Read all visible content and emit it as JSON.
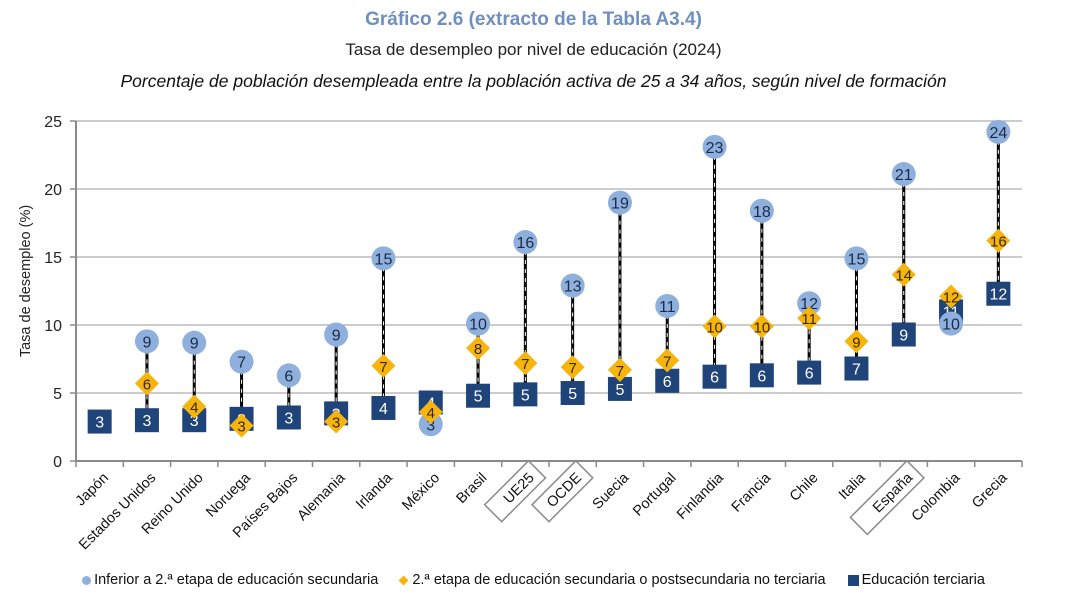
{
  "chart_data": {
    "type": "scatter",
    "title": "Gráfico 2.6 (extracto de la Tabla A3.4)",
    "subtitle": "Tasa de desempleo por nivel de educación (2024)",
    "description": "Porcentaje de población desempleada entre la población activa de 25 a 34 años, según nivel de formación",
    "xlabel": "",
    "ylabel": "Tasa de desempleo (%)",
    "ylim": [
      0,
      25
    ],
    "yticks": [
      "0",
      "5",
      "10",
      "15",
      "20",
      "25"
    ],
    "grid": true,
    "legend_position": "bottom",
    "categories": [
      "Japón",
      "Estados Unidos",
      "Reino Unido",
      "Noruega",
      "Países Bajos",
      "Alemania",
      "Irlanda",
      "México",
      "Brasil",
      "UE25",
      "OCDE",
      "Suecia",
      "Portugal",
      "Finlandia",
      "Francia",
      "Chile",
      "Italia",
      "España",
      "Colombia",
      "Grecia"
    ],
    "highlighted_categories": [
      "UE25",
      "OCDE",
      "España"
    ],
    "series": [
      {
        "name": "Inferior a 2.ª etapa de educación secundaria",
        "marker": "circle",
        "color": "#8fb0dc",
        "values": [
          null,
          8.8,
          8.7,
          7.3,
          6.3,
          9.3,
          14.9,
          2.7,
          10.1,
          16.1,
          12.9,
          19.0,
          11.4,
          23.1,
          18.4,
          11.6,
          14.9,
          21.1,
          10.1,
          24.2
        ],
        "labels": [
          "",
          "9",
          "9",
          "7",
          "6",
          "9",
          "15",
          "3",
          "10",
          "16",
          "13",
          "19",
          "11",
          "23",
          "18",
          "12",
          "15",
          "21",
          "10",
          "24"
        ]
      },
      {
        "name": "2.ª etapa de educación secundaria o postsecundaria no terciaria",
        "marker": "diamond",
        "color": "#f5b50e",
        "values": [
          null,
          5.7,
          4.0,
          2.6,
          null,
          2.9,
          7.0,
          3.6,
          8.3,
          7.2,
          6.9,
          6.7,
          7.4,
          9.9,
          9.9,
          10.5,
          8.8,
          13.7,
          12.1,
          16.2
        ],
        "labels": [
          "",
          "6",
          "4",
          "3",
          "",
          "3",
          "7",
          "4",
          "8",
          "7",
          "7",
          "7",
          "7",
          "10",
          "10",
          "11",
          "9",
          "14",
          "12",
          "16"
        ]
      },
      {
        "name": "Educación terciaria",
        "marker": "square",
        "color": "#1f447a",
        "values": [
          2.9,
          3.0,
          3.0,
          3.1,
          3.2,
          3.5,
          3.9,
          4.3,
          4.8,
          4.9,
          5.0,
          5.3,
          5.9,
          6.2,
          6.3,
          6.5,
          6.8,
          9.3,
          11.0,
          12.3
        ],
        "labels": [
          "3",
          "3",
          "3",
          "3",
          "3",
          "3",
          "4",
          "4",
          "5",
          "5",
          "5",
          "5",
          "6",
          "6",
          "6",
          "6",
          "7",
          "9",
          "11",
          "12"
        ]
      }
    ]
  }
}
